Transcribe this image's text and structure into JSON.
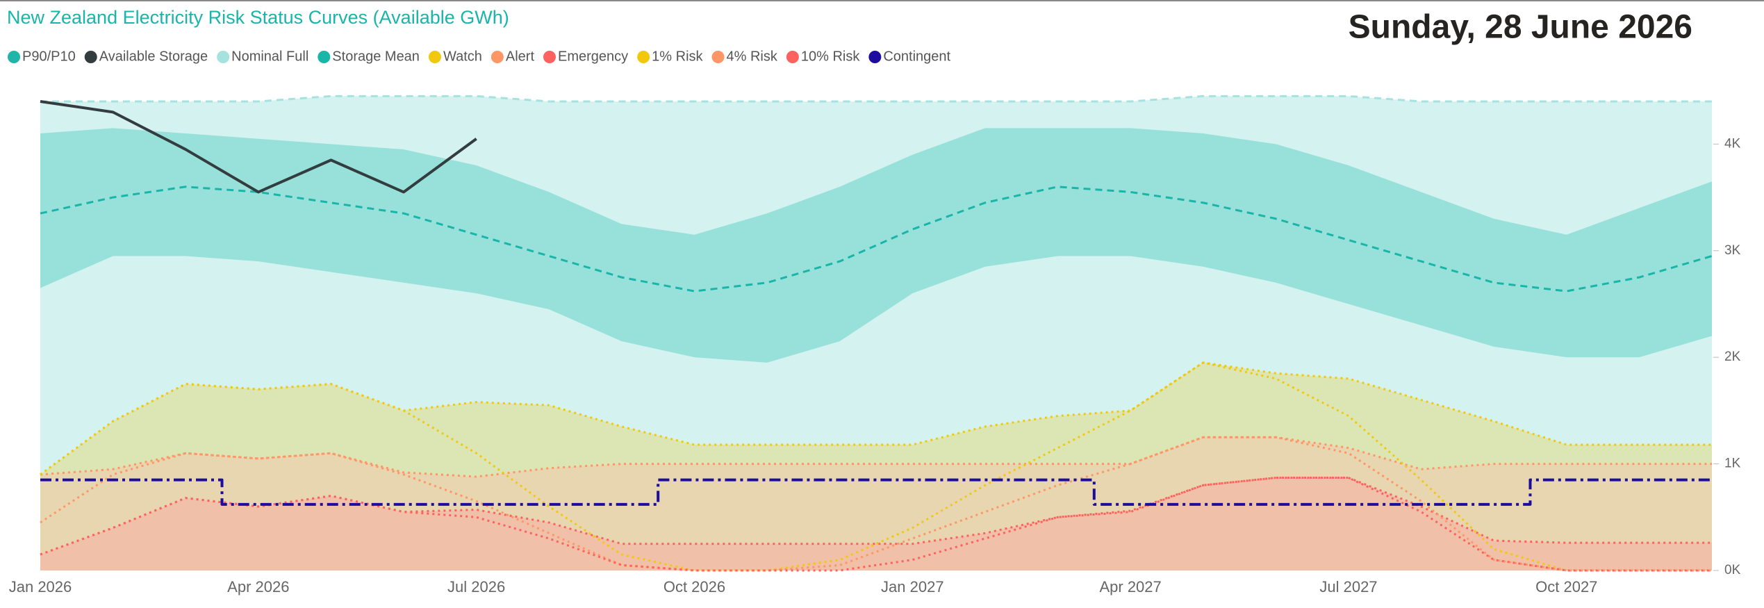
{
  "date_label": "Sunday, 28 June 2026",
  "chart_data": {
    "type": "risk-curves",
    "title": "New Zealand Electricity Risk Status Curves (Available GWh)",
    "x": [
      "2026-01",
      "2026-02",
      "2026-03",
      "2026-04",
      "2026-05",
      "2026-06",
      "2026-07",
      "2026-08",
      "2026-09",
      "2026-10",
      "2026-11",
      "2026-12",
      "2027-01",
      "2027-02",
      "2027-03",
      "2027-04",
      "2027-05",
      "2027-06",
      "2027-07",
      "2027-08",
      "2027-09",
      "2027-10",
      "2027-11",
      "2027-12"
    ],
    "xticks": [
      {
        "value": "2026-01",
        "label": "Jan 2026"
      },
      {
        "value": "2026-04",
        "label": "Apr 2026"
      },
      {
        "value": "2026-07",
        "label": "Jul 2026"
      },
      {
        "value": "2026-10",
        "label": "Oct 2026"
      },
      {
        "value": "2027-01",
        "label": "Jan 2027"
      },
      {
        "value": "2027-04",
        "label": "Apr 2027"
      },
      {
        "value": "2027-07",
        "label": "Jul 2027"
      },
      {
        "value": "2027-10",
        "label": "Oct 2027"
      }
    ],
    "ylim": [
      0,
      4550
    ],
    "yticks": [
      {
        "value": 0,
        "label": "0K"
      },
      {
        "value": 1000,
        "label": "1K"
      },
      {
        "value": 2000,
        "label": "2K"
      },
      {
        "value": 3000,
        "label": "3K"
      },
      {
        "value": 4000,
        "label": "4K"
      }
    ],
    "series": [
      {
        "name": "P90/P10",
        "color": "#1fb5a8",
        "style": "band",
        "fill": "#97e1da",
        "values": [
          4100,
          4150,
          4100,
          4050,
          4000,
          3950,
          3800,
          3550,
          3250,
          3150,
          3350,
          3600,
          3900,
          4150,
          4150,
          4150,
          4100,
          4000,
          3800,
          3550,
          3300,
          3150,
          3400,
          3650
        ],
        "lower": [
          2650,
          2950,
          2950,
          2900,
          2800,
          2700,
          2600,
          2450,
          2150,
          2000,
          1950,
          2150,
          2600,
          2850,
          2950,
          2950,
          2850,
          2700,
          2500,
          2300,
          2100,
          2000,
          2000,
          2200
        ]
      },
      {
        "name": "Available Storage",
        "color": "#333d3f",
        "style": "line",
        "values": [
          4400,
          4300,
          3950,
          3550,
          3850,
          3550,
          4050,
          null,
          null,
          null,
          null,
          null,
          null,
          null,
          null,
          null,
          null,
          null,
          null,
          null,
          null,
          null,
          null,
          null
        ]
      },
      {
        "name": "Nominal Full",
        "color": "#a6e3de",
        "style": "area-dashed",
        "fill": "#d4f2ef",
        "values": [
          4400,
          4400,
          4400,
          4400,
          4450,
          4450,
          4450,
          4400,
          4400,
          4400,
          4400,
          4400,
          4400,
          4400,
          4400,
          4400,
          4450,
          4450,
          4450,
          4400,
          4400,
          4400,
          4400,
          4400
        ]
      },
      {
        "name": "Storage Mean",
        "color": "#1ab5a9",
        "style": "dashed",
        "values": [
          3350,
          3500,
          3600,
          3550,
          3450,
          3350,
          3150,
          2950,
          2750,
          2620,
          2700,
          2900,
          3200,
          3450,
          3600,
          3550,
          3450,
          3300,
          3100,
          2900,
          2700,
          2620,
          2750,
          2950
        ]
      },
      {
        "name": "Watch",
        "color": "#f2c80f",
        "style": "area-dotted",
        "fill": "#dce6b5",
        "values": [
          900,
          1400,
          1750,
          1700,
          1750,
          1500,
          1580,
          1550,
          1350,
          1180,
          1180,
          1180,
          1180,
          1350,
          1450,
          1500,
          1950,
          1850,
          1800,
          1600,
          1400,
          1180,
          1180,
          1180
        ]
      },
      {
        "name": "Alert",
        "color": "#fe9666",
        "style": "area-dotted",
        "fill": "#e8d6b0",
        "values": [
          900,
          950,
          1100,
          1050,
          1100,
          920,
          880,
          960,
          1000,
          1000,
          1000,
          1000,
          1000,
          1000,
          1000,
          1000,
          1250,
          1250,
          1150,
          950,
          1000,
          1000,
          1000,
          1000
        ]
      },
      {
        "name": "Emergency",
        "color": "#fd625e",
        "style": "area-dotted",
        "fill": "#f0c0a8",
        "values": [
          150,
          400,
          680,
          600,
          700,
          550,
          570,
          450,
          250,
          250,
          250,
          250,
          250,
          350,
          500,
          550,
          800,
          870,
          870,
          600,
          280,
          260,
          260,
          260
        ]
      },
      {
        "name": "1% Risk",
        "color": "#f2c80f",
        "style": "dotted",
        "values": [
          900,
          1400,
          1750,
          1700,
          1750,
          1500,
          1100,
          600,
          150,
          0,
          0,
          100,
          400,
          800,
          1150,
          1500,
          1950,
          1800,
          1450,
          850,
          200,
          0,
          0,
          0
        ]
      },
      {
        "name": "4% Risk",
        "color": "#fe9666",
        "style": "dotted",
        "values": [
          450,
          900,
          1100,
          1050,
          1100,
          900,
          650,
          350,
          50,
          0,
          0,
          50,
          300,
          550,
          800,
          1000,
          1250,
          1250,
          1100,
          650,
          100,
          0,
          0,
          0
        ]
      },
      {
        "name": "10% Risk",
        "color": "#fd625e",
        "style": "dotted",
        "values": [
          150,
          400,
          680,
          600,
          700,
          550,
          500,
          300,
          50,
          0,
          0,
          0,
          100,
          300,
          500,
          560,
          800,
          870,
          870,
          550,
          100,
          0,
          0,
          0
        ]
      },
      {
        "name": "Contingent",
        "color": "#1c0d9e",
        "style": "step",
        "values": [
          850,
          850,
          850,
          620,
          620,
          620,
          620,
          620,
          620,
          850,
          850,
          850,
          850,
          850,
          850,
          620,
          620,
          620,
          620,
          620,
          620,
          850,
          850,
          850
        ]
      }
    ],
    "draw_order": [
      2,
      0,
      3,
      4,
      5,
      6,
      7,
      8,
      9,
      10,
      1
    ]
  }
}
